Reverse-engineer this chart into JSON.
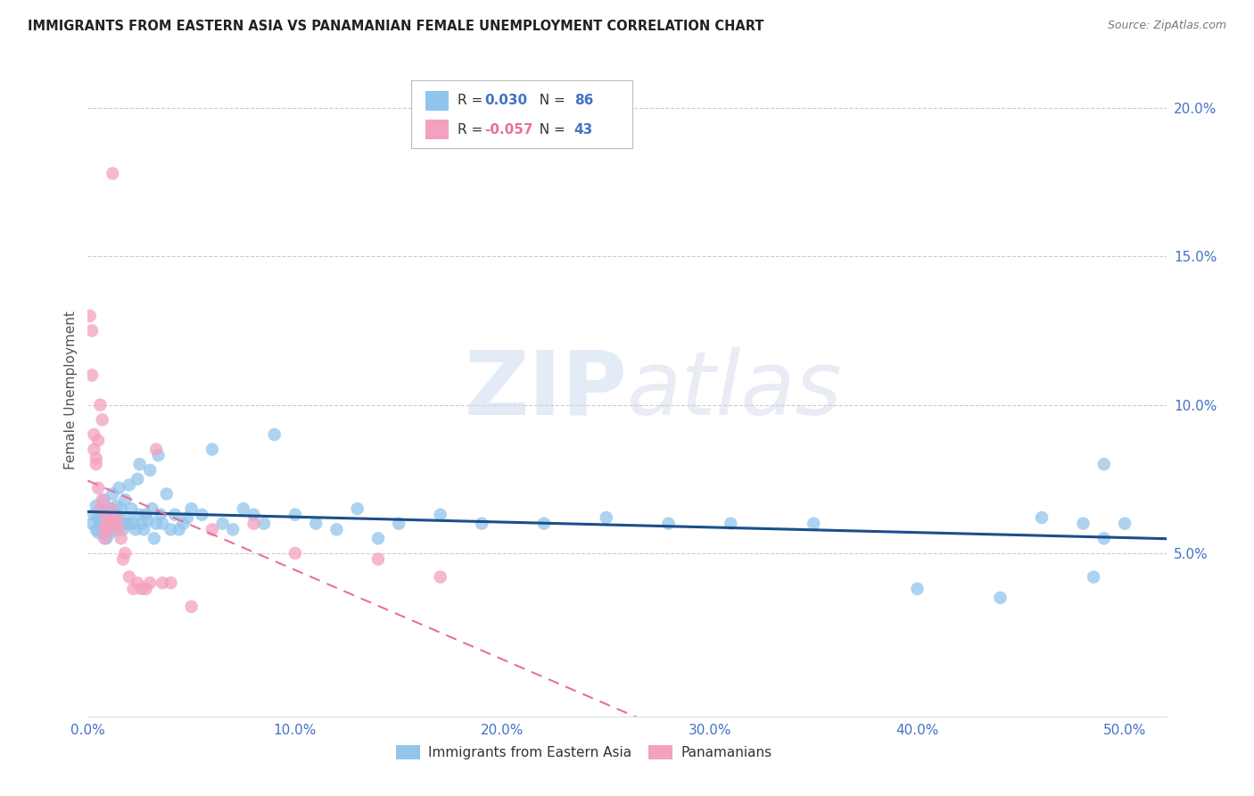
{
  "title": "IMMIGRANTS FROM EASTERN ASIA VS PANAMANIAN FEMALE UNEMPLOYMENT CORRELATION CHART",
  "source": "Source: ZipAtlas.com",
  "ylabel_label": "Female Unemployment",
  "xlim": [
    0.0,
    0.52
  ],
  "ylim": [
    -0.005,
    0.215
  ],
  "xticks": [
    0.0,
    0.1,
    0.2,
    0.3,
    0.4,
    0.5
  ],
  "xticklabels": [
    "0.0%",
    "10.0%",
    "20.0%",
    "30.0%",
    "40.0%",
    "50.0%"
  ],
  "yticks": [
    0.05,
    0.1,
    0.15,
    0.2
  ],
  "yticklabels": [
    "5.0%",
    "10.0%",
    "15.0%",
    "20.0%"
  ],
  "blue_color": "#92C5EC",
  "pink_color": "#F4A0C0",
  "blue_line_color": "#1B4F8A",
  "pink_line_color": "#E8709A",
  "legend_blue_R": "0.030",
  "legend_blue_N": "86",
  "legend_pink_R": "-0.057",
  "legend_pink_N": "43",
  "blue_scatter_x": [
    0.002,
    0.003,
    0.004,
    0.004,
    0.005,
    0.005,
    0.006,
    0.006,
    0.007,
    0.007,
    0.008,
    0.008,
    0.009,
    0.009,
    0.01,
    0.01,
    0.011,
    0.011,
    0.012,
    0.012,
    0.013,
    0.013,
    0.014,
    0.014,
    0.015,
    0.015,
    0.016,
    0.017,
    0.018,
    0.018,
    0.019,
    0.02,
    0.02,
    0.021,
    0.022,
    0.023,
    0.024,
    0.025,
    0.025,
    0.026,
    0.027,
    0.028,
    0.029,
    0.03,
    0.031,
    0.032,
    0.033,
    0.034,
    0.035,
    0.036,
    0.038,
    0.04,
    0.042,
    0.044,
    0.046,
    0.048,
    0.05,
    0.055,
    0.06,
    0.065,
    0.07,
    0.075,
    0.08,
    0.085,
    0.09,
    0.1,
    0.11,
    0.12,
    0.13,
    0.14,
    0.15,
    0.17,
    0.19,
    0.22,
    0.25,
    0.28,
    0.31,
    0.35,
    0.4,
    0.44,
    0.46,
    0.48,
    0.49,
    0.5,
    0.49,
    0.485
  ],
  "blue_scatter_y": [
    0.06,
    0.063,
    0.058,
    0.066,
    0.057,
    0.062,
    0.06,
    0.065,
    0.058,
    0.063,
    0.06,
    0.068,
    0.055,
    0.064,
    0.059,
    0.061,
    0.057,
    0.065,
    0.06,
    0.07,
    0.062,
    0.058,
    0.063,
    0.066,
    0.06,
    0.072,
    0.065,
    0.058,
    0.06,
    0.068,
    0.062,
    0.06,
    0.073,
    0.065,
    0.06,
    0.058,
    0.075,
    0.08,
    0.063,
    0.06,
    0.058,
    0.063,
    0.061,
    0.078,
    0.065,
    0.055,
    0.06,
    0.083,
    0.063,
    0.06,
    0.07,
    0.058,
    0.063,
    0.058,
    0.06,
    0.062,
    0.065,
    0.063,
    0.085,
    0.06,
    0.058,
    0.065,
    0.063,
    0.06,
    0.09,
    0.063,
    0.06,
    0.058,
    0.065,
    0.055,
    0.06,
    0.063,
    0.06,
    0.06,
    0.062,
    0.06,
    0.06,
    0.06,
    0.038,
    0.035,
    0.062,
    0.06,
    0.08,
    0.06,
    0.055,
    0.042
  ],
  "pink_scatter_x": [
    0.001,
    0.002,
    0.002,
    0.003,
    0.003,
    0.004,
    0.004,
    0.005,
    0.005,
    0.006,
    0.006,
    0.007,
    0.007,
    0.008,
    0.008,
    0.009,
    0.009,
    0.01,
    0.01,
    0.011,
    0.011,
    0.012,
    0.013,
    0.014,
    0.015,
    0.016,
    0.017,
    0.018,
    0.02,
    0.022,
    0.024,
    0.026,
    0.028,
    0.03,
    0.033,
    0.036,
    0.04,
    0.05,
    0.06,
    0.08,
    0.1,
    0.14,
    0.17
  ],
  "pink_scatter_y": [
    0.13,
    0.125,
    0.11,
    0.085,
    0.09,
    0.08,
    0.082,
    0.072,
    0.088,
    0.065,
    0.1,
    0.095,
    0.068,
    0.058,
    0.055,
    0.06,
    0.062,
    0.06,
    0.058,
    0.062,
    0.065,
    0.178,
    0.06,
    0.062,
    0.058,
    0.055,
    0.048,
    0.05,
    0.042,
    0.038,
    0.04,
    0.038,
    0.038,
    0.04,
    0.085,
    0.04,
    0.04,
    0.032,
    0.058,
    0.06,
    0.05,
    0.048,
    0.042
  ],
  "watermark_zip": "ZIP",
  "watermark_atlas": "atlas",
  "background_color": "#FFFFFF",
  "grid_color": "#CCCCCC"
}
